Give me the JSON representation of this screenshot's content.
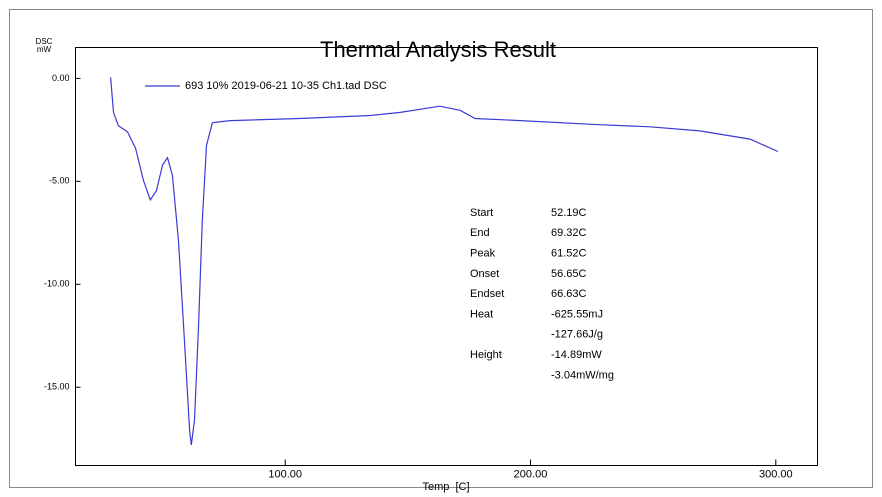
{
  "chart_data": {
    "type": "line",
    "title": "Thermal Analysis Result",
    "y_label": [
      "DSC",
      "mW"
    ],
    "x_label": "Temp  [C]",
    "xlim": [
      14.5,
      317
    ],
    "ylim": [
      -18.8,
      1.5
    ],
    "xticks": [
      {
        "value": 100,
        "label": "100.00"
      },
      {
        "value": 200,
        "label": "200.00"
      },
      {
        "value": 300,
        "label": "300.00"
      }
    ],
    "yticks": [
      {
        "value": 0,
        "label": "0.00"
      },
      {
        "value": -5,
        "label": "-5.00"
      },
      {
        "value": -10,
        "label": "-10.00"
      },
      {
        "value": -15,
        "label": "-15.00"
      }
    ],
    "x": [
      28.8,
      30,
      32,
      35.7,
      39,
      42.2,
      45,
      47.5,
      50,
      52,
      54,
      56.5,
      58.9,
      61,
      61.7,
      63,
      64.6,
      66.2,
      67.9,
      70.3,
      77.6,
      106,
      134.7,
      146.9,
      163,
      171.3,
      177.4,
      195.8,
      228,
      248.7,
      269,
      289.5,
      300.9
    ],
    "series": [
      {
        "name": "693 10% 2019-06-21 10-35 Ch1.tad DSC",
        "color": "#3a3ad6",
        "values": [
          0.05,
          -1.65,
          -2.3,
          -2.6,
          -3.4,
          -4.95,
          -5.9,
          -5.45,
          -4.2,
          -3.85,
          -4.7,
          -7.9,
          -12.7,
          -17.1,
          -17.8,
          -16.6,
          -12.2,
          -6.9,
          -3.25,
          -2.15,
          -2.05,
          -1.95,
          -1.8,
          -1.65,
          -1.35,
          -1.55,
          -1.95,
          -2.05,
          -2.25,
          -2.35,
          -2.55,
          -2.95,
          -3.55
        ]
      }
    ],
    "results": [
      {
        "label": "Start",
        "values": [
          "52.19C"
        ]
      },
      {
        "label": "End",
        "values": [
          "69.32C"
        ]
      },
      {
        "label": "Peak",
        "values": [
          "61.52C"
        ]
      },
      {
        "label": "Onset",
        "values": [
          "56.65C"
        ]
      },
      {
        "label": "Endset",
        "values": [
          "66.63C"
        ]
      },
      {
        "label": "Heat",
        "values": [
          "-625.55mJ",
          "-127.66J/g"
        ]
      },
      {
        "label": "Height",
        "values": [
          "-14.89mW",
          "-3.04mW/mg"
        ]
      }
    ]
  }
}
